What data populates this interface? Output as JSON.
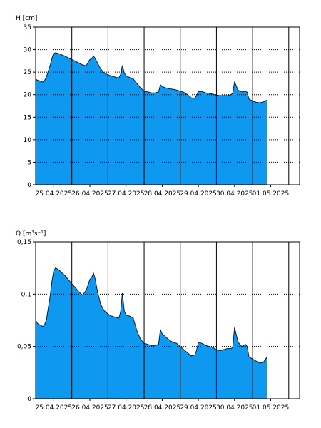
{
  "chart_data": [
    {
      "type": "area",
      "ylabel": "H [cm]",
      "ylim": [
        0,
        35
      ],
      "yticks": [
        0,
        5,
        10,
        15,
        20,
        25,
        30,
        35
      ],
      "ytick_labels": [
        "0",
        "5",
        "10",
        "15",
        "20",
        "25",
        "30",
        "35"
      ],
      "xlim": [
        0,
        7.3
      ],
      "x_categories": [
        "25.04.2025",
        "26.04.2025",
        "27.04.2025",
        "28.04.2025",
        "29.04.2025",
        "30.04.2025",
        "01.05.2025"
      ],
      "grid": true,
      "fill_color": "#0f98f0",
      "series": [
        {
          "x": [
            0.0,
            0.05,
            0.1,
            0.15,
            0.2,
            0.25,
            0.3,
            0.4,
            0.45,
            0.5,
            0.55,
            0.6,
            0.65,
            0.7,
            0.8,
            0.9,
            1.0,
            1.1,
            1.2,
            1.3,
            1.4,
            1.45,
            1.5,
            1.55,
            1.6,
            1.65,
            1.7,
            1.8,
            1.9,
            2.0,
            2.1,
            2.2,
            2.3,
            2.35,
            2.4,
            2.45,
            2.5,
            2.6,
            2.7,
            2.8,
            2.9,
            3.0,
            3.1,
            3.2,
            3.3,
            3.4,
            3.45,
            3.5,
            3.6,
            3.7,
            3.8,
            3.9,
            4.0,
            4.1,
            4.2,
            4.3,
            4.4,
            4.45,
            4.5,
            4.6,
            4.7,
            4.8,
            4.9,
            5.0,
            5.1,
            5.2,
            5.3,
            5.4,
            5.45,
            5.5,
            5.6,
            5.7,
            5.8,
            5.85,
            5.9,
            6.0,
            6.1,
            6.2,
            6.3,
            6.4
          ],
          "y": [
            23.5,
            23.2,
            23.1,
            22.9,
            22.8,
            23.2,
            24.0,
            26.5,
            28.0,
            29.2,
            29.3,
            29.2,
            29.1,
            28.9,
            28.6,
            28.2,
            27.8,
            27.4,
            27.0,
            26.6,
            26.4,
            27.2,
            27.8,
            28.0,
            28.6,
            28.0,
            27.2,
            25.7,
            24.8,
            24.4,
            24.1,
            23.9,
            23.7,
            24.5,
            26.5,
            24.8,
            24.2,
            23.8,
            23.5,
            22.5,
            21.5,
            20.8,
            20.6,
            20.4,
            20.4,
            20.6,
            22.2,
            21.8,
            21.5,
            21.3,
            21.2,
            21.0,
            20.8,
            20.5,
            20.0,
            19.3,
            19.2,
            19.8,
            20.7,
            20.7,
            20.4,
            20.3,
            20.1,
            19.9,
            19.8,
            19.8,
            19.8,
            20.0,
            20.3,
            22.8,
            21.0,
            20.6,
            20.8,
            20.5,
            19.0,
            18.6,
            18.3,
            18.2,
            18.4,
            18.8
          ]
        }
      ]
    },
    {
      "type": "area",
      "ylabel": "Q [m³s⁻¹]",
      "ylim": [
        0,
        0.15
      ],
      "yticks": [
        0,
        0.05,
        0.1,
        0.15
      ],
      "ytick_labels": [
        "0",
        "0,05",
        "0,1",
        "0,15"
      ],
      "xlim": [
        0,
        7.3
      ],
      "x_categories": [
        "25.04.2025",
        "26.04.2025",
        "27.04.2025",
        "28.04.2025",
        "29.04.2025",
        "30.04.2025",
        "01.05.2025"
      ],
      "grid": true,
      "fill_color": "#0f98f0",
      "series": [
        {
          "x": [
            0.0,
            0.05,
            0.1,
            0.15,
            0.2,
            0.25,
            0.3,
            0.4,
            0.45,
            0.5,
            0.55,
            0.6,
            0.65,
            0.7,
            0.8,
            0.9,
            1.0,
            1.1,
            1.2,
            1.3,
            1.4,
            1.45,
            1.5,
            1.55,
            1.6,
            1.65,
            1.7,
            1.8,
            1.9,
            2.0,
            2.1,
            2.2,
            2.3,
            2.35,
            2.4,
            2.45,
            2.5,
            2.6,
            2.7,
            2.8,
            2.9,
            3.0,
            3.1,
            3.2,
            3.3,
            3.4,
            3.45,
            3.5,
            3.6,
            3.7,
            3.8,
            3.9,
            4.0,
            4.1,
            4.2,
            4.3,
            4.4,
            4.45,
            4.5,
            4.6,
            4.7,
            4.8,
            4.9,
            5.0,
            5.1,
            5.2,
            5.3,
            5.4,
            5.45,
            5.5,
            5.6,
            5.7,
            5.8,
            5.85,
            5.9,
            6.0,
            6.1,
            6.2,
            6.3,
            6.4
          ],
          "y": [
            0.075,
            0.072,
            0.071,
            0.07,
            0.069,
            0.071,
            0.076,
            0.098,
            0.112,
            0.122,
            0.125,
            0.124,
            0.123,
            0.121,
            0.118,
            0.114,
            0.11,
            0.106,
            0.102,
            0.099,
            0.104,
            0.109,
            0.114,
            0.116,
            0.12,
            0.114,
            0.104,
            0.09,
            0.084,
            0.081,
            0.079,
            0.078,
            0.077,
            0.083,
            0.101,
            0.084,
            0.08,
            0.079,
            0.077,
            0.065,
            0.057,
            0.053,
            0.052,
            0.051,
            0.051,
            0.052,
            0.066,
            0.062,
            0.059,
            0.056,
            0.054,
            0.053,
            0.05,
            0.047,
            0.044,
            0.041,
            0.042,
            0.046,
            0.054,
            0.053,
            0.051,
            0.05,
            0.049,
            0.047,
            0.046,
            0.047,
            0.048,
            0.048,
            0.049,
            0.068,
            0.054,
            0.05,
            0.052,
            0.05,
            0.04,
            0.038,
            0.036,
            0.034,
            0.035,
            0.04
          ]
        }
      ]
    }
  ]
}
